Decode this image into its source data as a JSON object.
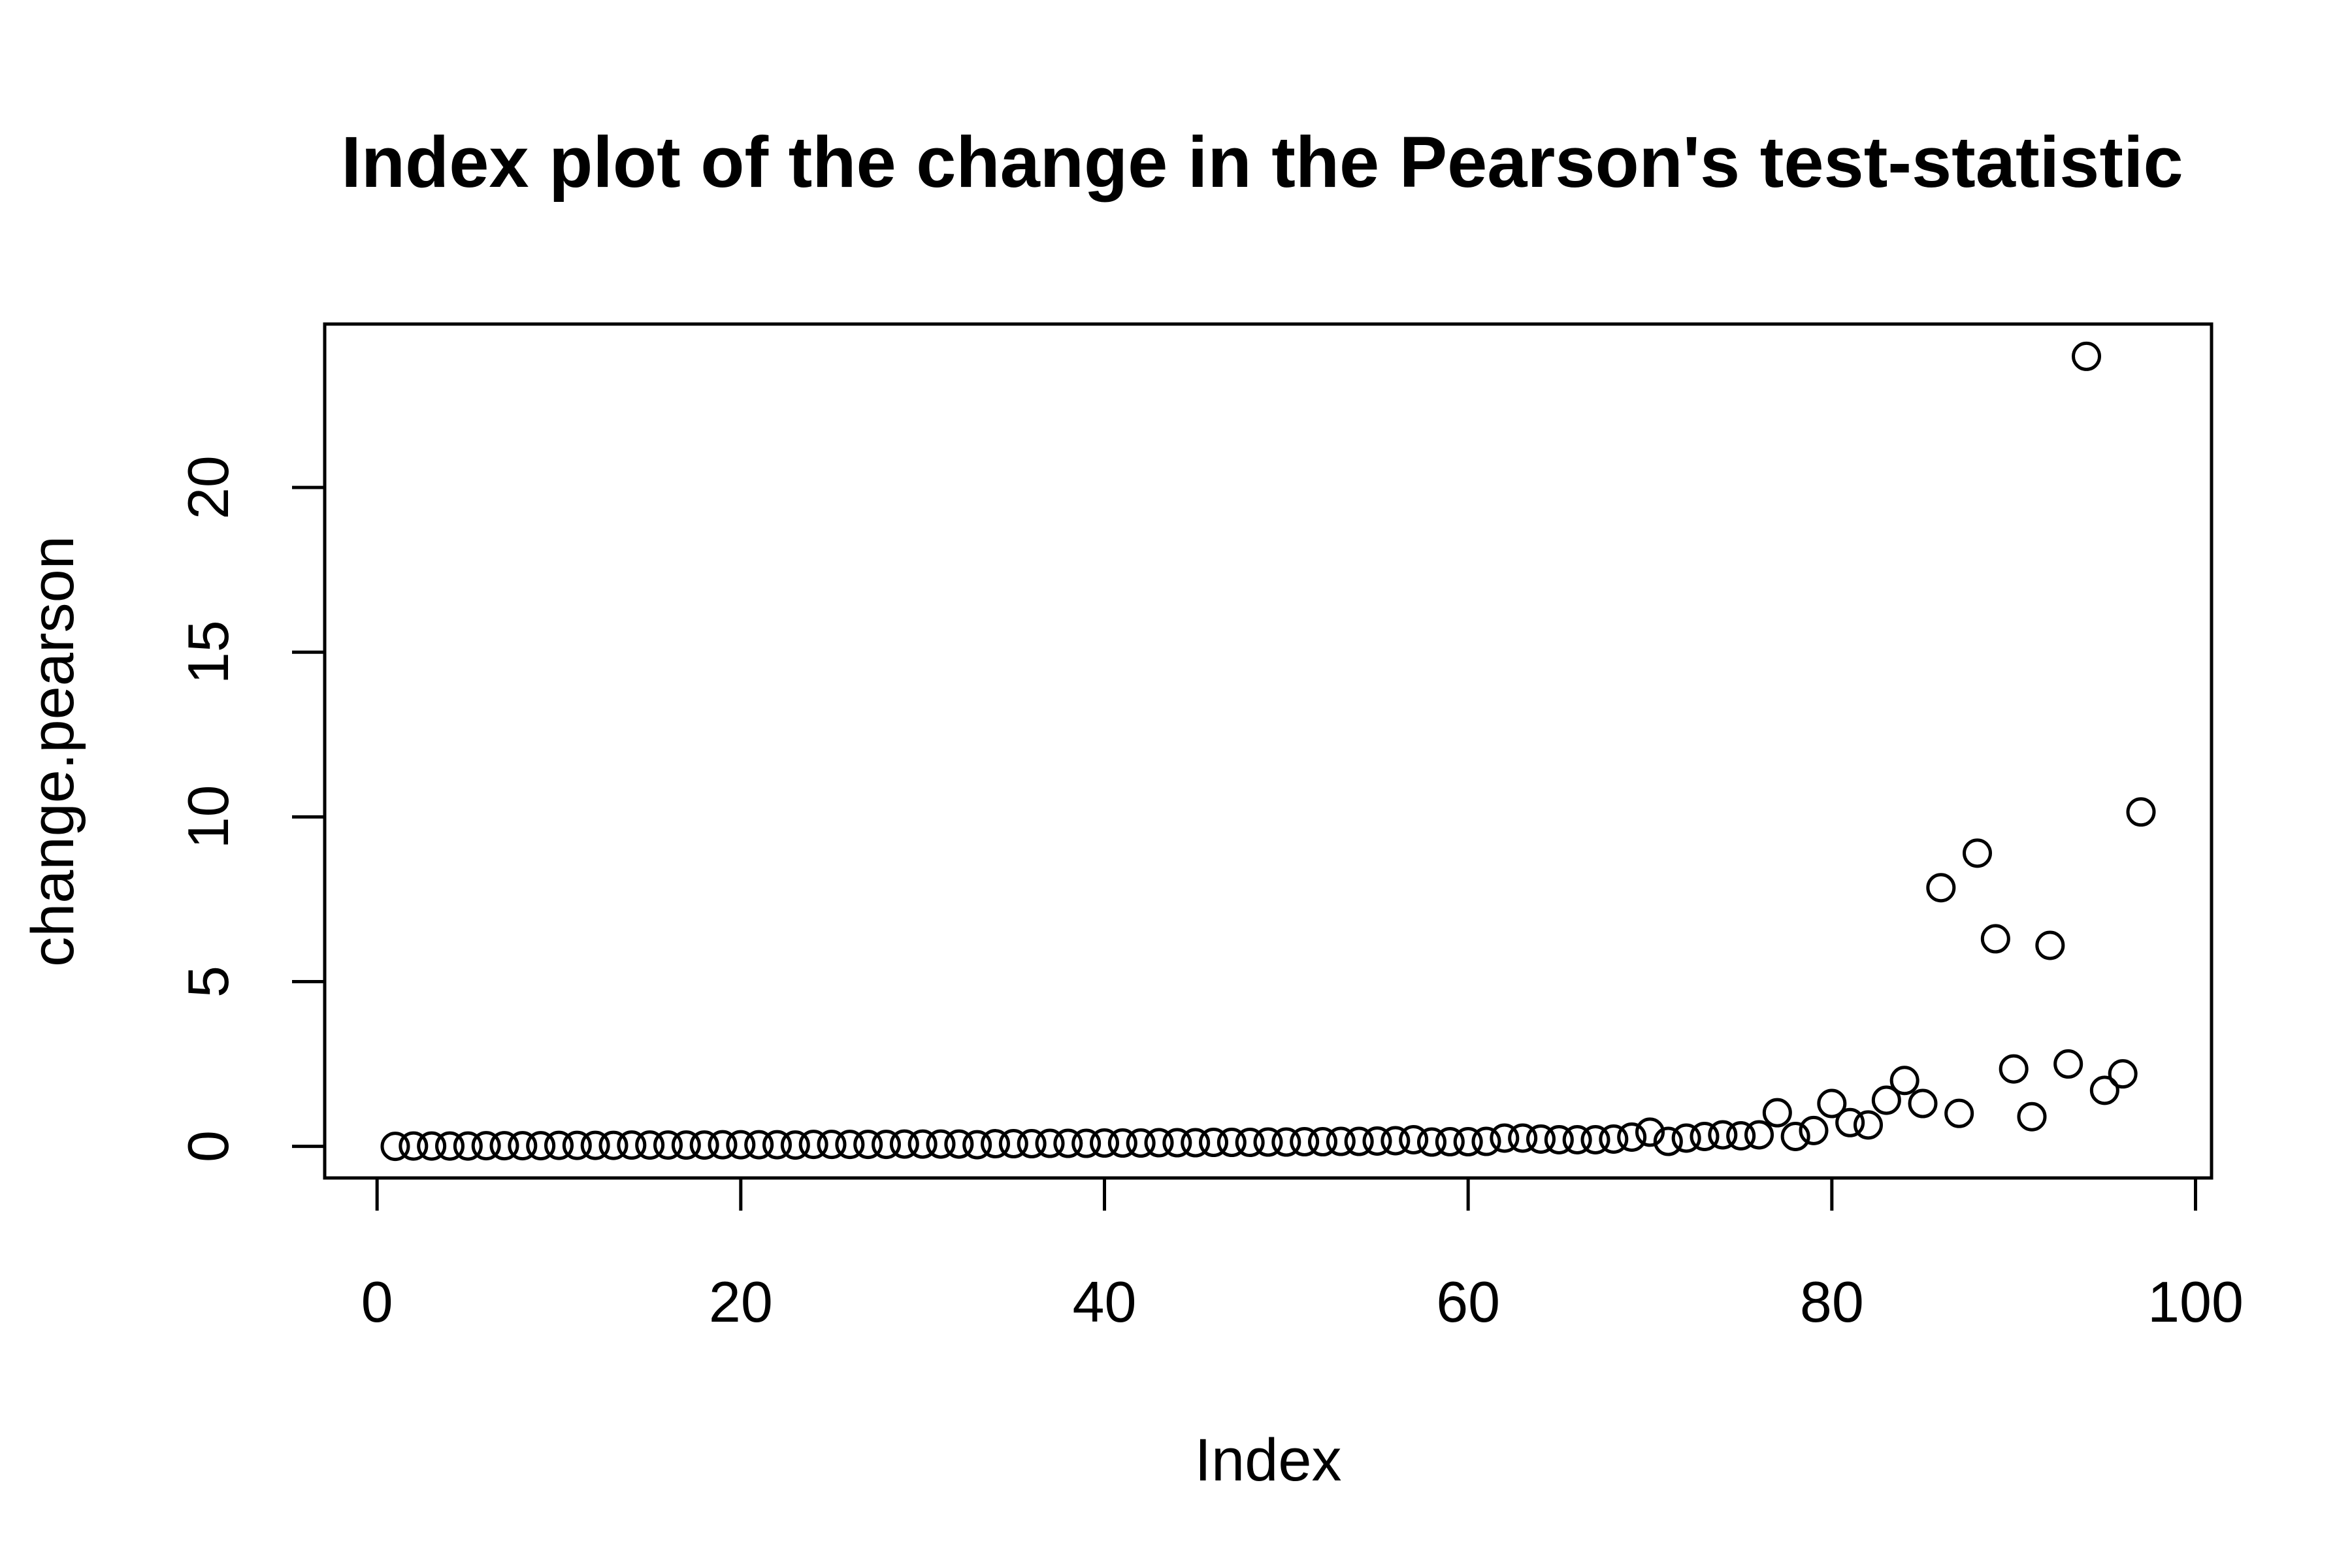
{
  "chart_data": {
    "type": "scatter",
    "title": "Index plot of the change in the Pearson's test-statistic",
    "xlabel": "Index",
    "ylabel": "change.pearson",
    "xlim": [
      -2.88,
      100.88
    ],
    "ylim": [
      -0.96,
      24.96
    ],
    "xticks": [
      0,
      20,
      40,
      60,
      80,
      100
    ],
    "yticks": [
      0,
      5,
      10,
      15,
      20
    ],
    "grid": false,
    "legend": "none",
    "point_shape": "open-circle",
    "x": [
      1,
      2,
      3,
      4,
      5,
      6,
      7,
      8,
      9,
      10,
      11,
      12,
      13,
      14,
      15,
      16,
      17,
      18,
      19,
      20,
      21,
      22,
      23,
      24,
      25,
      26,
      27,
      28,
      29,
      30,
      31,
      32,
      33,
      34,
      35,
      36,
      37,
      38,
      39,
      40,
      41,
      42,
      43,
      44,
      45,
      46,
      47,
      48,
      49,
      50,
      51,
      52,
      53,
      54,
      55,
      56,
      57,
      58,
      59,
      60,
      61,
      62,
      63,
      64,
      65,
      66,
      67,
      68,
      69,
      70,
      71,
      72,
      73,
      74,
      75,
      76,
      77,
      78,
      79,
      80,
      81,
      82,
      83,
      84,
      85,
      86,
      87,
      88,
      89,
      90,
      91,
      92,
      93,
      94,
      95,
      96,
      97
    ],
    "y": [
      0.0,
      0.01,
      0.01,
      0.01,
      0.01,
      0.02,
      0.02,
      0.02,
      0.02,
      0.03,
      0.03,
      0.03,
      0.03,
      0.04,
      0.04,
      0.04,
      0.04,
      0.04,
      0.05,
      0.05,
      0.05,
      0.05,
      0.04,
      0.06,
      0.06,
      0.06,
      0.06,
      0.06,
      0.07,
      0.07,
      0.07,
      0.07,
      0.05,
      0.08,
      0.08,
      0.08,
      0.09,
      0.09,
      0.09,
      0.1,
      0.1,
      0.1,
      0.11,
      0.11,
      0.11,
      0.12,
      0.12,
      0.12,
      0.13,
      0.13,
      0.14,
      0.14,
      0.15,
      0.15,
      0.16,
      0.17,
      0.2,
      0.13,
      0.14,
      0.14,
      0.15,
      0.25,
      0.25,
      0.22,
      0.2,
      0.2,
      0.2,
      0.22,
      0.28,
      0.43,
      0.15,
      0.25,
      0.3,
      0.35,
      0.32,
      0.35,
      1.02,
      0.3,
      0.48,
      1.3,
      0.72,
      0.65,
      1.4,
      2.0,
      1.3,
      7.85,
      1.0,
      8.9,
      6.3,
      2.35,
      0.9,
      6.1,
      2.5,
      23.98,
      1.7,
      2.2,
      10.15
    ]
  }
}
